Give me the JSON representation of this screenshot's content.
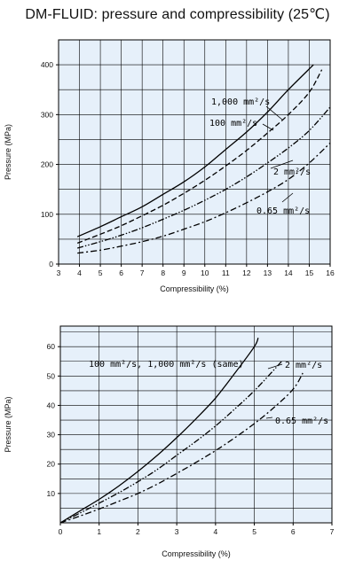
{
  "page": {
    "title": "DM-FLUID: pressure and compressibility (25℃)"
  },
  "chart_data": [
    {
      "type": "line",
      "xlabel": "Compressibility (%)",
      "ylabel": "Pressure (MPa)",
      "xlim": [
        3,
        16
      ],
      "ylim": [
        0,
        450
      ],
      "xticks": [
        "3",
        "4",
        "5",
        "6",
        "7",
        "8",
        "9",
        "10",
        "11",
        "12",
        "13",
        "14",
        "15",
        "16"
      ],
      "yticks": [
        "0",
        "100",
        "200",
        "300",
        "400"
      ],
      "grid": true,
      "series": [
        {
          "name": "1,000 mm²/s",
          "dash": "solid",
          "x": [
            3.9,
            5,
            6,
            7,
            8,
            9,
            10,
            11,
            12,
            13,
            14,
            15.2
          ],
          "y": [
            55,
            75,
            95,
            115,
            140,
            165,
            195,
            230,
            265,
            305,
            350,
            400
          ]
        },
        {
          "name": "100 mm²/s",
          "dash": "dash",
          "x": [
            3.9,
            5,
            6,
            7,
            8,
            9,
            10,
            11,
            12,
            13,
            14,
            15,
            15.6
          ],
          "y": [
            42,
            60,
            77,
            97,
            118,
            142,
            168,
            197,
            228,
            263,
            300,
            345,
            390
          ]
        },
        {
          "name": "2 mm²/s",
          "dash": "dashdotdot",
          "x": [
            3.9,
            5,
            6,
            7,
            8,
            9,
            10,
            11,
            12,
            13,
            14,
            15,
            16
          ],
          "y": [
            32,
            45,
            58,
            73,
            90,
            108,
            128,
            150,
            175,
            203,
            233,
            268,
            315
          ]
        },
        {
          "name": "0.65 mm²/s",
          "dash": "dashdot",
          "x": [
            3.9,
            5,
            6,
            7,
            8,
            9,
            10,
            11,
            12,
            13,
            14,
            15,
            16
          ],
          "y": [
            22,
            28,
            36,
            45,
            56,
            70,
            85,
            103,
            123,
            145,
            170,
            203,
            243
          ]
        }
      ]
    },
    {
      "type": "line",
      "xlabel": "Compressibility (%)",
      "ylabel": "Pressure (MPa)",
      "xlim": [
        0,
        7
      ],
      "ylim": [
        0,
        67
      ],
      "xticks": [
        "0",
        "1",
        "2",
        "3",
        "4",
        "5",
        "6",
        "7"
      ],
      "yticks": [
        "10",
        "20",
        "30",
        "40",
        "50",
        "60"
      ],
      "grid": true,
      "series": [
        {
          "name": "100 mm²/s, 1,000 mm²/s (same)",
          "dash": "solid",
          "x": [
            0,
            0.5,
            1,
            1.5,
            2,
            2.5,
            3,
            3.5,
            4,
            4.5,
            5,
            5.1
          ],
          "y": [
            0,
            4,
            8,
            12.5,
            17.5,
            23,
            29,
            35.5,
            42.5,
            51,
            60,
            63
          ]
        },
        {
          "name": "2 mm²/s",
          "dash": "dashdotdot",
          "x": [
            0,
            0.5,
            1,
            1.5,
            2,
            2.5,
            3,
            3.5,
            4,
            4.5,
            5,
            5.5,
            5.7
          ],
          "y": [
            0,
            3.3,
            6.7,
            10.2,
            14,
            18.2,
            23,
            27.8,
            33,
            38.8,
            45,
            52,
            55
          ]
        },
        {
          "name": "0.65 mm²/s",
          "dash": "dashdot",
          "x": [
            0,
            0.5,
            1,
            1.5,
            2,
            2.5,
            3,
            3.5,
            4,
            4.5,
            5,
            5.5,
            6,
            6.25
          ],
          "y": [
            0,
            2.3,
            4.7,
            7.3,
            10,
            13.2,
            16.8,
            20.6,
            24.6,
            29,
            33.8,
            39.2,
            45.5,
            51
          ]
        }
      ]
    }
  ]
}
